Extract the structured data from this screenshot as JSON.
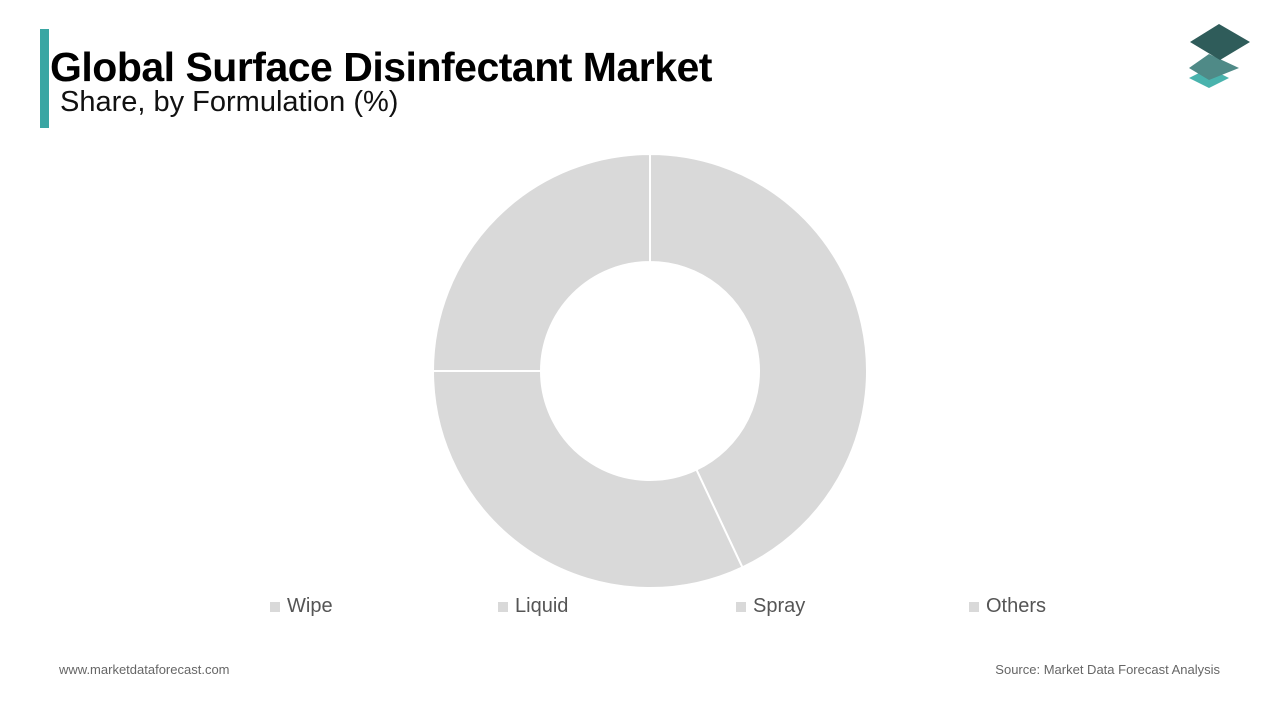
{
  "header": {
    "title": "Global Surface Disinfectant Market",
    "subtitle": "Share, by Formulation (%)"
  },
  "logo": {
    "icon": "stacked-layers-icon",
    "colors": [
      "#2f5c5a",
      "#4f8a87",
      "#49b3ad"
    ]
  },
  "chart_data": {
    "type": "pie",
    "donut": true,
    "categories": [
      "Wipe",
      "Liquid",
      "Spray",
      "Others"
    ],
    "values": [
      43,
      32,
      25,
      0
    ],
    "colors": [
      "#d9d9d9",
      "#d9d9d9",
      "#d9d9d9",
      "#d9d9d9"
    ],
    "legend_position": "bottom",
    "title": "",
    "xlabel": "",
    "ylabel": ""
  },
  "footer": {
    "website": "www.marketdataforecast.com",
    "source": "Source: Market Data Forecast Analysis"
  },
  "colors": {
    "accent": "#3aa6a3",
    "slice": "#d9d9d9",
    "legend_text": "#555555",
    "footer_text": "#666666"
  }
}
